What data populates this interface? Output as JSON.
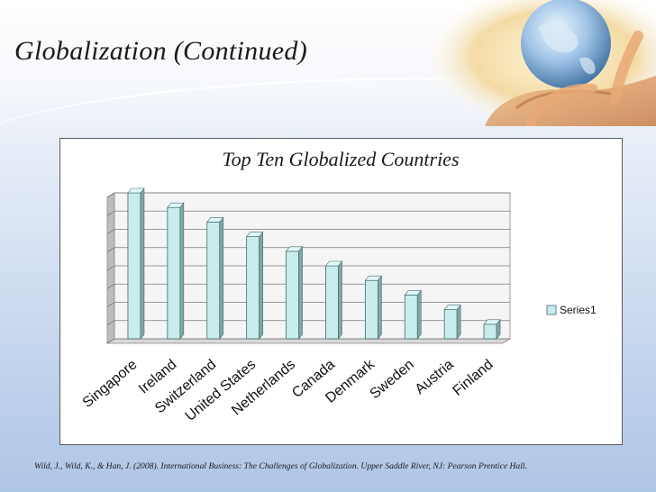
{
  "slide": {
    "title": "Globalization (Continued)",
    "citation": "Wild, J., Wild, K., & Han, J. (2008). International Business: The Challenges of Globalization. Upper Saddle River, NJ: Pearson Prentice Hall."
  },
  "colors": {
    "bar_front": "#c9ecec",
    "bar_side": "#7fa7a7",
    "bar_top": "#e4f7f7",
    "bar_stroke": "#3f6b6b",
    "gridline": "#7a7a7a",
    "wall": "#f5f5f5",
    "wall_side": "#bdbdbd"
  },
  "chart_data": {
    "type": "bar",
    "title": "Top Ten Globalized Countries",
    "xlabel": "",
    "ylabel": "",
    "categories": [
      "Singapore",
      "Ireland",
      "Switzerland",
      "United States",
      "Netherlands",
      "Canada",
      "Denmark",
      "Sweden",
      "Austria",
      "Finland"
    ],
    "series": [
      {
        "name": "Series1",
        "values": [
          10,
          9,
          8,
          7,
          6,
          5,
          4,
          3,
          2,
          1
        ]
      }
    ],
    "ylim": [
      0,
      10
    ],
    "y_tick_labels_shown": false,
    "grid": true,
    "three_d": true,
    "legend_position": "right"
  }
}
